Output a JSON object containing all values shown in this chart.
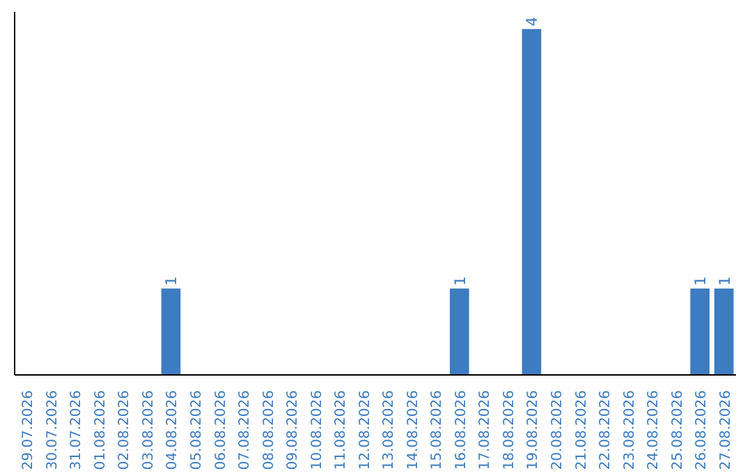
{
  "chart_data": {
    "type": "bar",
    "categories": [
      "29.07.2026",
      "30.07.2026",
      "31.07.2026",
      "01.08.2026",
      "02.08.2026",
      "03.08.2026",
      "04.08.2026",
      "05.08.2026",
      "06.08.2026",
      "07.08.2026",
      "08.08.2026",
      "09.08.2026",
      "10.08.2026",
      "11.08.2026",
      "12.08.2026",
      "13.08.2026",
      "14.08.2026",
      "15.08.2026",
      "16.08.2026",
      "17.08.2026",
      "18.08.2026",
      "19.08.2026",
      "20.08.2026",
      "21.08.2026",
      "22.08.2026",
      "23.08.2026",
      "24.08.2026",
      "25.08.2026",
      "26.08.2026",
      "27.08.2026"
    ],
    "values": [
      0,
      0,
      0,
      0,
      0,
      0,
      1,
      0,
      0,
      0,
      0,
      0,
      0,
      0,
      0,
      0,
      0,
      0,
      1,
      0,
      0,
      4,
      0,
      0,
      0,
      0,
      0,
      0,
      1,
      1
    ],
    "value_labels": [
      null,
      null,
      null,
      null,
      null,
      null,
      "1",
      null,
      null,
      null,
      null,
      null,
      null,
      null,
      null,
      null,
      null,
      null,
      "1",
      null,
      null,
      "4",
      null,
      null,
      null,
      null,
      null,
      null,
      "1",
      "1"
    ],
    "color": "#3d7cc0",
    "ylim": [
      0,
      4.2
    ],
    "tick_labels": "x",
    "grid": false
  }
}
